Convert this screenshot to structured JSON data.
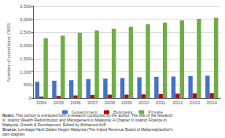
{
  "chart_data": {
    "type": "bar",
    "categories": [
      "2004",
      "2005",
      "2006",
      "2007",
      "2008",
      "2009",
      "2010",
      "2011",
      "2012",
      "2013",
      "2014"
    ],
    "series": [
      {
        "name": "Government",
        "color": "#4472c4",
        "values": [
          620,
          660,
          680,
          720,
          740,
          760,
          790,
          810,
          820,
          840,
          850
        ]
      },
      {
        "name": "Business",
        "color": "#c00000",
        "values": [
          50,
          80,
          100,
          120,
          130,
          130,
          140,
          150,
          165,
          175,
          185
        ]
      },
      {
        "name": "Private",
        "color": "#70ad47",
        "values": [
          2280,
          2380,
          2490,
          2580,
          2640,
          2720,
          2820,
          2880,
          2960,
          3020,
          3060
        ]
      }
    ],
    "ylabel": "Number of contributor ('000)",
    "ylim": [
      0,
      3500
    ],
    "yticks": [
      0,
      500,
      {
        "value": 1000,
        "label": "1,000"
      },
      {
        "value": 1500,
        "label": "1,500"
      },
      {
        "value": 2000,
        "label": "2,000"
      },
      {
        "value": 2500,
        "label": "2,500"
      },
      {
        "value": 3000,
        "label": "3,000"
      },
      {
        "value": 3500,
        "label": "3,500"
      }
    ],
    "grid": true,
    "legend": "bottom",
    "annotations": [
      [
        "Notes:",
        " This portion is extracted from a research conducted by the author. The title of the research"
      ],
      [
        "is: Islamic Wealth Redistribution and Management in Malaysia: A Chapter in Islamic Finance in"
      ],
      [
        "Malaysia: Growth & Development. Edited by Mohamed Ariff"
      ],
      [
        "Source:",
        " Lembaga Hasil Dalam Negeri Malaysia (The Inland Revenue Board of Malaysia)/author's"
      ],
      [
        "own diagram"
      ]
    ]
  }
}
